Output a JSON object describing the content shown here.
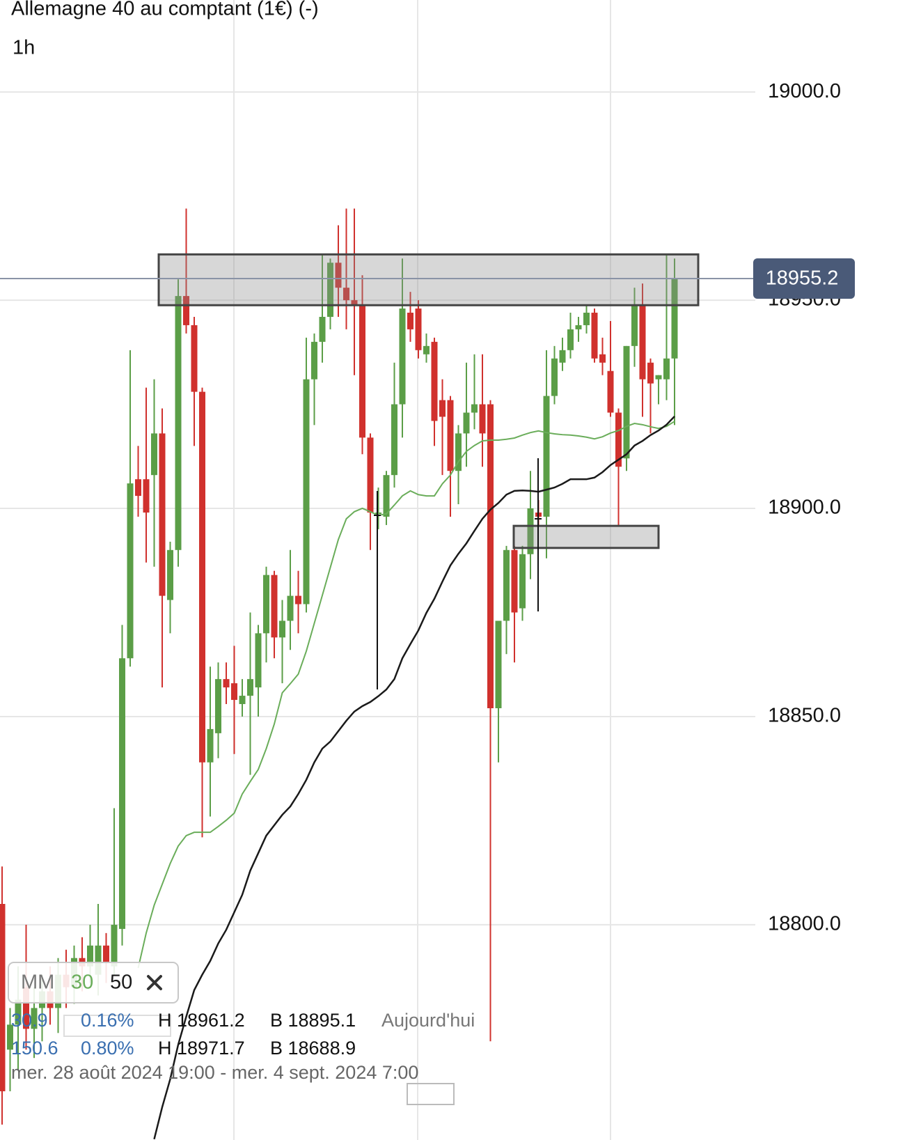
{
  "header": {
    "title": "Allemagne 40 au comptant (1€) (-)",
    "interval": "1h"
  },
  "chart_data": {
    "type": "candlestick",
    "open": [
      18805,
      18770,
      18776,
      18785,
      18775,
      18780,
      18784,
      18780,
      18788,
      18785,
      18792,
      18790,
      18788,
      18795,
      18790,
      18799,
      18864,
      18907,
      18907,
      18908,
      18918,
      18878,
      18890,
      18951,
      18944,
      18928,
      18839,
      18846,
      18859,
      18858,
      18853,
      18855,
      18857,
      18870,
      18884,
      18869,
      18873,
      18879,
      18877,
      18931,
      18940,
      18946,
      18959,
      18953,
      18950,
      18949,
      18917,
      18899,
      18898,
      18908,
      18925,
      18947,
      18948,
      18937,
      18940,
      18926,
      18926,
      18909,
      18918,
      18923,
      18925,
      18925,
      18852,
      18873,
      18890,
      18876,
      18889,
      18899,
      18898,
      18927,
      18935,
      18938,
      18943,
      18944,
      18947,
      18937,
      18933,
      18923,
      18912,
      18939,
      18949,
      18935,
      18931,
      18931,
      18936
    ],
    "high": [
      18814,
      18780,
      18790,
      18800,
      18785,
      18788,
      18790,
      18792,
      18794,
      18795,
      18797,
      18800,
      18805,
      18798,
      18828,
      18872,
      18938,
      18915,
      18929,
      18931,
      18924,
      18892,
      18955,
      18972,
      18946,
      18929,
      18862,
      18863,
      18863,
      18867,
      18859,
      18875,
      18872,
      18886,
      18885,
      18878,
      18890,
      18885,
      18941,
      18942,
      18961,
      18960,
      18968,
      18972,
      18972,
      18956,
      18918,
      18905,
      18909,
      18935,
      18960,
      18952,
      18950,
      18942,
      18941,
      18931,
      18927,
      18920,
      18935,
      18937,
      18937,
      18926,
      18873,
      18891,
      18891,
      18891,
      18909,
      18902,
      18938,
      18939,
      18941,
      18947,
      18946,
      18949,
      18948,
      18941,
      18945,
      18924,
      18939,
      18953,
      18954,
      18936,
      18932,
      18961,
      18960
    ],
    "low": [
      18752,
      18760,
      18765,
      18770,
      18768,
      18772,
      18776,
      18774,
      18780,
      18781,
      18784,
      18786,
      18783,
      18786,
      18788,
      18795,
      18862,
      18898,
      18887,
      18886,
      18857,
      18870,
      18886,
      18942,
      18915,
      18821,
      18826,
      18840,
      18853,
      18841,
      18850,
      18836,
      18850,
      18863,
      18864,
      18858,
      18866,
      18870,
      18875,
      18920,
      18935,
      18943,
      18946,
      18943,
      18932,
      18913,
      18890,
      18895,
      18896,
      18905,
      18917,
      18940,
      18936,
      18935,
      18915,
      18908,
      18898,
      18901,
      18910,
      18919,
      18910,
      18772,
      18839,
      18865,
      18863,
      18873,
      18883,
      18896,
      18888,
      18925,
      18933,
      18936,
      18940,
      18942,
      18935,
      18932,
      18922,
      18896,
      18909,
      18934,
      18922,
      18918,
      18925,
      18926,
      18920
    ],
    "close": [
      18760,
      18776,
      18782,
      18775,
      18780,
      18784,
      18780,
      18788,
      18785,
      18792,
      18790,
      18795,
      18795,
      18791,
      18800,
      18864,
      18906,
      18903,
      18899,
      18918,
      18879,
      18890,
      18951,
      18944,
      18928,
      18839,
      18847,
      18859,
      18857,
      18854,
      18855,
      18859,
      18870,
      18884,
      18869,
      18873,
      18879,
      18877,
      18931,
      18940,
      18946,
      18959,
      18953,
      18950,
      18949,
      18917,
      18899,
      18899,
      18908,
      18925,
      18948,
      18943,
      18938,
      18939,
      18921,
      18922,
      18909,
      18918,
      18923,
      18925,
      18918,
      18852,
      18873,
      18890,
      18875,
      18889,
      18900,
      18898,
      18927,
      18936,
      18938,
      18943,
      18944,
      18947,
      18936,
      18935,
      18923,
      18910,
      18939,
      18949,
      18931,
      18930,
      18932,
      18936,
      18955.2
    ],
    "up_color": "#5b9e47",
    "down_color": "#d0312d",
    "series": [
      {
        "name": "30",
        "color": "#6aad5a",
        "values": [
          null,
          null,
          null,
          null,
          null,
          null,
          null,
          null,
          null,
          null,
          null,
          null,
          null,
          null,
          null,
          null,
          null,
          18789.6,
          18798.0,
          18804.7,
          18809.7,
          18814.7,
          18818.9,
          18821.4,
          18822.2,
          18822.2,
          18822.2,
          18823.6,
          18825.1,
          18826.8,
          18831.4,
          18834.4,
          18837.3,
          18842.3,
          18848.2,
          18855.7,
          18857.9,
          18860.2,
          18865.7,
          18872.4,
          18879.1,
          18885.8,
          18892.5,
          18897.5,
          18899.2,
          18900.0,
          18899.2,
          18898.3,
          18898.7,
          18900.8,
          18903.0,
          18904.2,
          18903.3,
          18903.0,
          18903.0,
          18905.9,
          18908.0,
          18911.2,
          18913.7,
          18915.1,
          18916.2,
          18916.4,
          18916.4,
          18916.6,
          18916.9,
          18917.6,
          18918.2,
          18918.6,
          18918.2,
          18917.9,
          18917.7,
          18917.6,
          18917.4,
          18917.1,
          18916.7,
          18917.2,
          18918.1,
          18918.7,
          18919.7,
          18920.4,
          18920.1,
          18919.6,
          18919.2,
          18919.7,
          18920.9
        ]
      },
      {
        "name": "50",
        "color": "#1a1a1a",
        "values": [
          null,
          null,
          null,
          null,
          null,
          null,
          null,
          null,
          null,
          null,
          null,
          null,
          null,
          null,
          null,
          null,
          null,
          null,
          null,
          18748.5,
          18756.2,
          18762.9,
          18771.2,
          18777.9,
          18784.3,
          18788.0,
          18791.3,
          18795.5,
          18798.8,
          18803.0,
          18807.2,
          18813.0,
          18817.2,
          18821.4,
          18823.9,
          18826.4,
          18828.4,
          18831.4,
          18834.8,
          18839.0,
          18842.3,
          18844.0,
          18846.5,
          18849.0,
          18851.2,
          18852.5,
          18853.5,
          18854.9,
          18856.5,
          18859.0,
          18864.0,
          18867.4,
          18870.7,
          18874.9,
          18878.3,
          18882.4,
          18886.3,
          18889.1,
          18891.6,
          18894.6,
          18897.5,
          18899.7,
          18901.3,
          18903.3,
          18904.2,
          18904.3,
          18904.2,
          18904.0,
          18904.5,
          18905.0,
          18905.9,
          18907.0,
          18907.0,
          18907.0,
          18907.4,
          18908.7,
          18910.4,
          18911.7,
          18913.0,
          18915.1,
          18916.2,
          18917.6,
          18918.7,
          18920.1,
          18922.1
        ]
      }
    ],
    "ylim": [
      18748.3,
      19022.1
    ],
    "yticks": [
      {
        "value": 18800,
        "label": "18800.0"
      },
      {
        "value": 18850,
        "label": "18850.0"
      },
      {
        "value": 18900,
        "label": "18900.0"
      },
      {
        "value": 18950,
        "label": "18950.0"
      },
      {
        "value": 19000,
        "label": "19000.0"
      }
    ],
    "grid": true,
    "last_price": 18955.2,
    "zones": [
      {
        "low": 18948.8,
        "high": 18961.0
      },
      {
        "low": 18890.5,
        "high": 18895.8
      }
    ]
  },
  "legend": {
    "label": "MM"
  },
  "info": {
    "rows": [
      [
        "30.9",
        "0.16%",
        "H 18961.2",
        "B 18895.1",
        "Aujourd'hui"
      ],
      [
        "150.6",
        "0.80%",
        "H 18971.7",
        "B 18688.9"
      ]
    ],
    "range": "mer. 28 août 2024 19:00 - mer. 4 sept. 2024 7:00"
  }
}
